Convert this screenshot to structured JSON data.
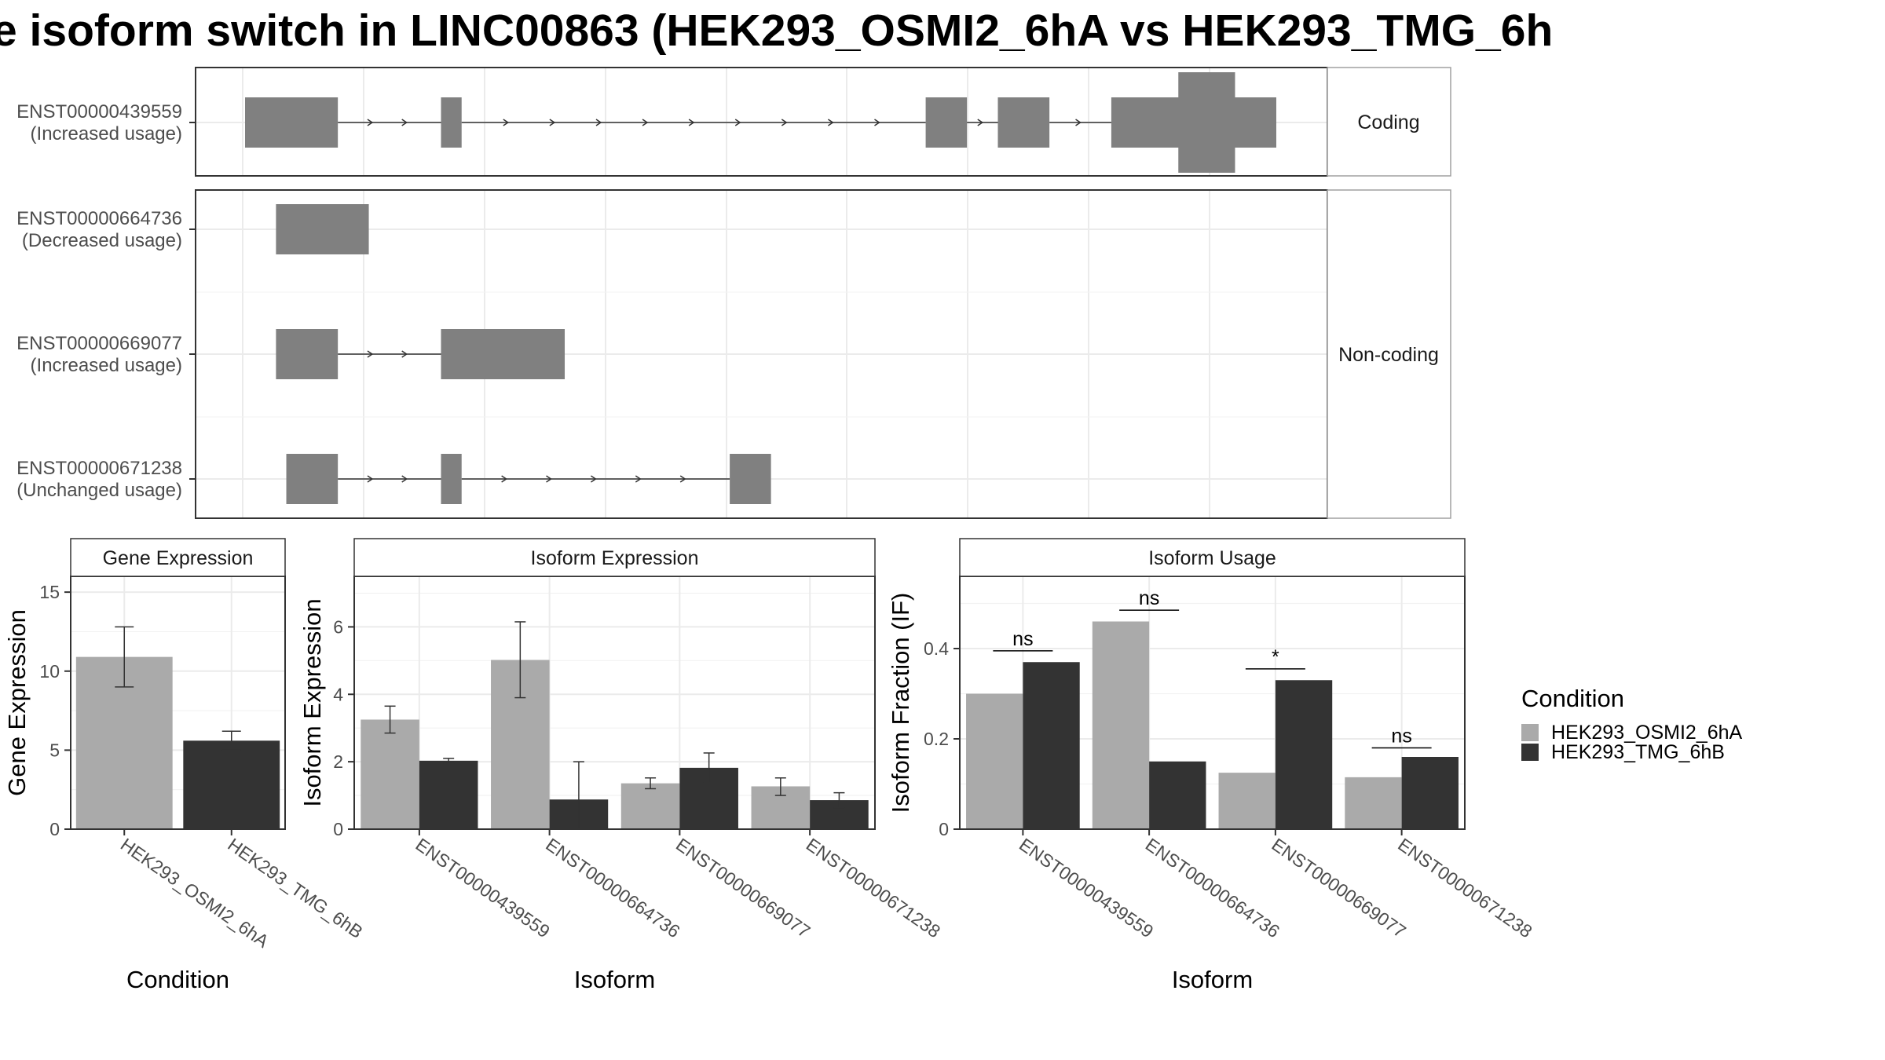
{
  "title": "e isoform switch in LINC00863 (HEK293_OSMI2_6hA vs HEK293_TMG_6h",
  "colors": {
    "exon": "#808080",
    "condition_a": "#aaaaaa",
    "condition_b": "#333333",
    "grid": "#ebebeb",
    "panel_border": "#333333",
    "strip_bg": "#ffffff"
  },
  "structure": {
    "coding_label": "Coding",
    "noncoding_label": "Non-coding",
    "transcripts": [
      {
        "id": "ENST00000439559",
        "status": "(Increased usage)",
        "group": "coding",
        "exons": [
          [
            0.0,
            0.09
          ],
          [
            0.19,
            0.21
          ],
          [
            0.66,
            0.7
          ],
          [
            0.73,
            0.78
          ],
          [
            0.84,
            1.0
          ]
        ],
        "cds": [
          [
            0.905,
            0.96
          ]
        ]
      },
      {
        "id": "ENST00000664736",
        "status": "(Decreased usage)",
        "group": "noncoding",
        "exons": [
          [
            0.03,
            0.12
          ]
        ],
        "cds": []
      },
      {
        "id": "ENST00000669077",
        "status": "(Increased usage)",
        "group": "noncoding",
        "exons": [
          [
            0.03,
            0.09
          ],
          [
            0.19,
            0.31
          ]
        ],
        "cds": []
      },
      {
        "id": "ENST00000671238",
        "status": "(Unchanged usage)",
        "group": "noncoding",
        "exons": [
          [
            0.04,
            0.09
          ],
          [
            0.19,
            0.21
          ],
          [
            0.47,
            0.51
          ]
        ],
        "cds": []
      }
    ]
  },
  "chart_data": [
    {
      "type": "bar",
      "title": "Gene Expression",
      "xlabel": "Condition",
      "ylabel": "Gene Expression",
      "ylim": [
        0,
        16
      ],
      "yticks": [
        0,
        5,
        10,
        15
      ],
      "categories": [
        "HEK293_OSMI2_6hA",
        "HEK293_TMG_6hB"
      ],
      "values": [
        10.9,
        5.6
      ],
      "errors": [
        [
          9.0,
          12.8
        ],
        [
          5.0,
          6.2
        ]
      ]
    },
    {
      "type": "bar",
      "title": "Isoform Expression",
      "xlabel": "Isoform",
      "ylabel": "Isoform Expression",
      "ylim": [
        0,
        7.5
      ],
      "yticks": [
        0,
        2,
        4,
        6
      ],
      "categories": [
        "ENST00000439559",
        "ENST00000664736",
        "ENST00000669077",
        "ENST00000671238"
      ],
      "series": [
        {
          "name": "HEK293_OSMI2_6hA",
          "values": [
            3.25,
            5.02,
            1.36,
            1.27
          ],
          "errors": [
            [
              2.85,
              3.65
            ],
            [
              3.9,
              6.15
            ],
            [
              1.2,
              1.52
            ],
            [
              1.0,
              1.52
            ]
          ]
        },
        {
          "name": "HEK293_TMG_6hB",
          "values": [
            2.03,
            0.88,
            1.82,
            0.86
          ],
          "errors": [
            [
              1.95,
              2.1
            ],
            [
              0.0,
              2.0
            ],
            [
              1.38,
              2.26
            ],
            [
              0.64,
              1.08
            ]
          ]
        }
      ]
    },
    {
      "type": "bar",
      "title": "Isoform Usage",
      "xlabel": "Isoform",
      "ylabel": "Isoform Fraction (IF)",
      "ylim": [
        0,
        0.56
      ],
      "yticks": [
        0.0,
        0.2,
        0.4
      ],
      "categories": [
        "ENST00000439559",
        "ENST00000664736",
        "ENST00000669077",
        "ENST00000671238"
      ],
      "series": [
        {
          "name": "HEK293_OSMI2_6hA",
          "values": [
            0.3,
            0.46,
            0.125,
            0.115
          ]
        },
        {
          "name": "HEK293_TMG_6hB",
          "values": [
            0.37,
            0.15,
            0.33,
            0.16
          ]
        }
      ],
      "significance": [
        "ns",
        "ns",
        "*",
        "ns"
      ],
      "significance_y": [
        0.395,
        0.485,
        0.355,
        0.18
      ]
    }
  ],
  "legend": {
    "title": "Condition",
    "items": [
      {
        "label": "HEK293_OSMI2_6hA",
        "color": "#aaaaaa"
      },
      {
        "label": "HEK293_TMG_6hB",
        "color": "#333333"
      }
    ]
  }
}
